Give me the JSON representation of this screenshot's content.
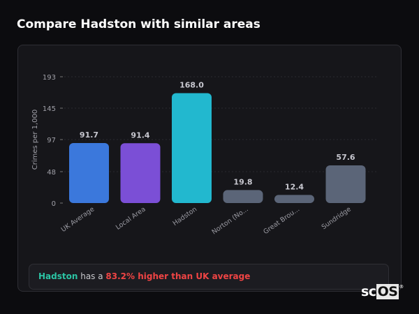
{
  "header": {
    "title": "Compare Hadston with similar areas"
  },
  "chart_data": {
    "type": "bar",
    "title": "",
    "xlabel": "",
    "ylabel": "Crimes per 1,000",
    "ylim": [
      0,
      193
    ],
    "yticks": [
      0,
      48,
      97,
      145,
      193
    ],
    "grid": true,
    "categories": [
      "UK Average",
      "Local Area",
      "Hadston",
      "Norton (No...",
      "Great Brou...",
      "Sundridge"
    ],
    "values": [
      91.7,
      91.4,
      168.0,
      19.8,
      12.4,
      57.6
    ],
    "data_labels": [
      "91.7",
      "91.4",
      "168.0",
      "19.8",
      "12.4",
      "57.6"
    ],
    "colors": [
      "#3b78dc",
      "#7b4fd6",
      "#22b8cf",
      "#5b6578",
      "#5b6578",
      "#5b6578"
    ]
  },
  "footer": {
    "name": "Hadston",
    "middle": " has a ",
    "highlight": "83.2% higher than UK average"
  },
  "logo": {
    "text_a": "sc",
    "text_b": "OS",
    "mark": "®"
  }
}
